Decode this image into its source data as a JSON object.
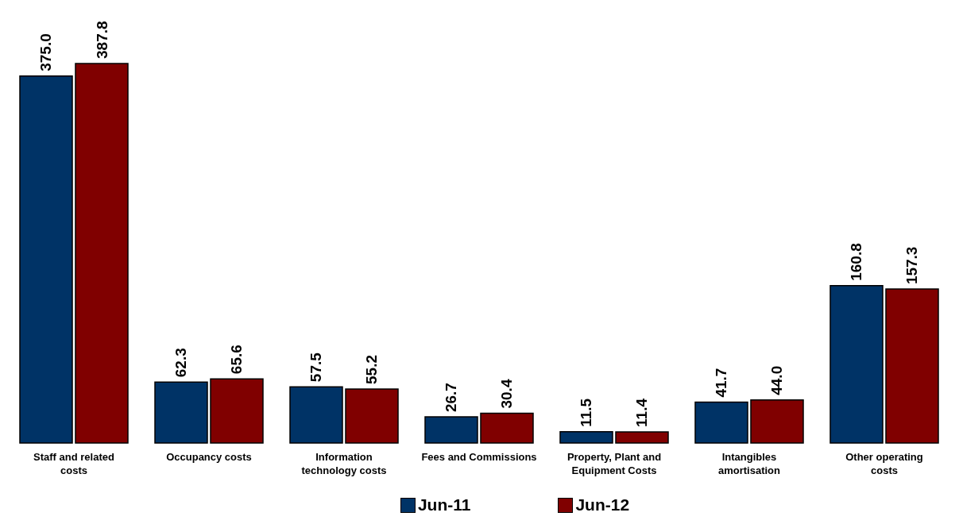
{
  "chart_data": {
    "type": "bar",
    "categories": [
      "Staff and related costs",
      "Occupancy costs",
      "Information technology costs",
      "Fees and Commissions",
      "Property, Plant and Equipment Costs",
      "Intangibles amortisation",
      "Other operating costs"
    ],
    "series": [
      {
        "name": "Jun-11",
        "color": "#003366",
        "values": [
          375.0,
          62.3,
          57.5,
          26.7,
          11.5,
          41.7,
          160.8
        ],
        "value_labels": [
          "375.0",
          "62.3",
          "57.5",
          "26.7",
          "11.5",
          "41.7",
          "160.8"
        ]
      },
      {
        "name": "Jun-12",
        "color": "#800000",
        "values": [
          387.8,
          65.6,
          55.2,
          30.4,
          11.4,
          44.0,
          157.3
        ],
        "value_labels": [
          "387.8",
          "65.6",
          "55.2",
          "30.4",
          "11.4",
          "44.0",
          "157.3"
        ]
      }
    ],
    "legend": "bottom",
    "grid": false
  }
}
